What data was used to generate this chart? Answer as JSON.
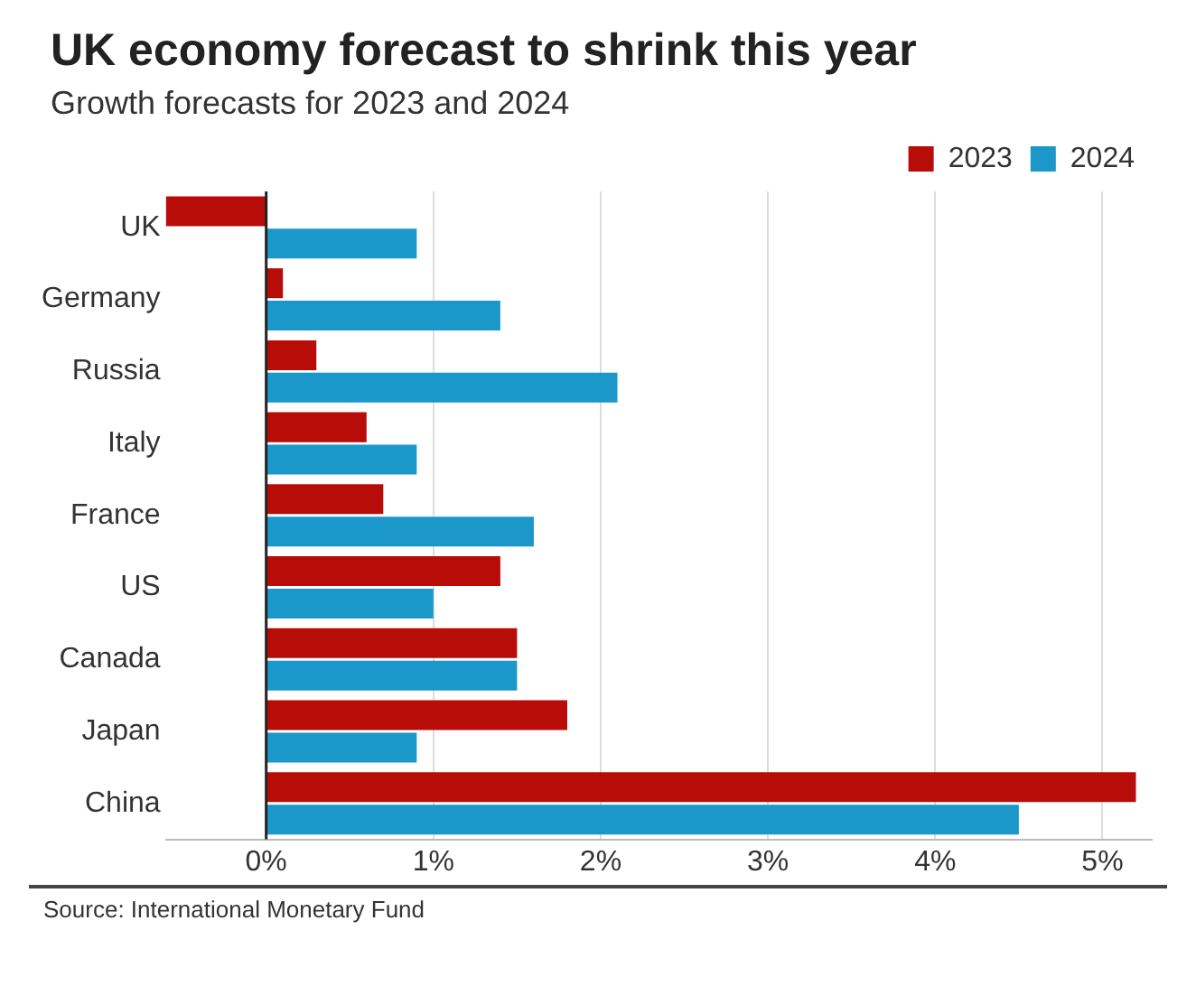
{
  "chart_data": {
    "type": "bar",
    "orientation": "horizontal",
    "title": "UK economy forecast to shrink this year",
    "subtitle": "Growth forecasts for 2023 and 2024",
    "categories": [
      "UK",
      "Germany",
      "Russia",
      "Italy",
      "France",
      "US",
      "Canada",
      "Japan",
      "China"
    ],
    "series": [
      {
        "name": "2023",
        "color": "#b80c09",
        "values": [
          -0.6,
          0.1,
          0.3,
          0.6,
          0.7,
          1.4,
          1.5,
          1.8,
          5.2
        ]
      },
      {
        "name": "2024",
        "color": "#1b98c9",
        "values": [
          0.9,
          1.4,
          2.1,
          0.9,
          1.6,
          1.0,
          1.5,
          0.9,
          4.5
        ]
      }
    ],
    "xlim": [
      -0.6,
      5.3
    ],
    "xticks": [
      {
        "value": 0,
        "label": "0%"
      },
      {
        "value": 1,
        "label": "1%"
      },
      {
        "value": 2,
        "label": "2%"
      },
      {
        "value": 3,
        "label": "3%"
      },
      {
        "value": 4,
        "label": "4%"
      },
      {
        "value": 5,
        "label": "5%"
      }
    ],
    "grid": "x",
    "legend": "top right",
    "annotations": [
      "Source: International Monetary Fund"
    ]
  }
}
